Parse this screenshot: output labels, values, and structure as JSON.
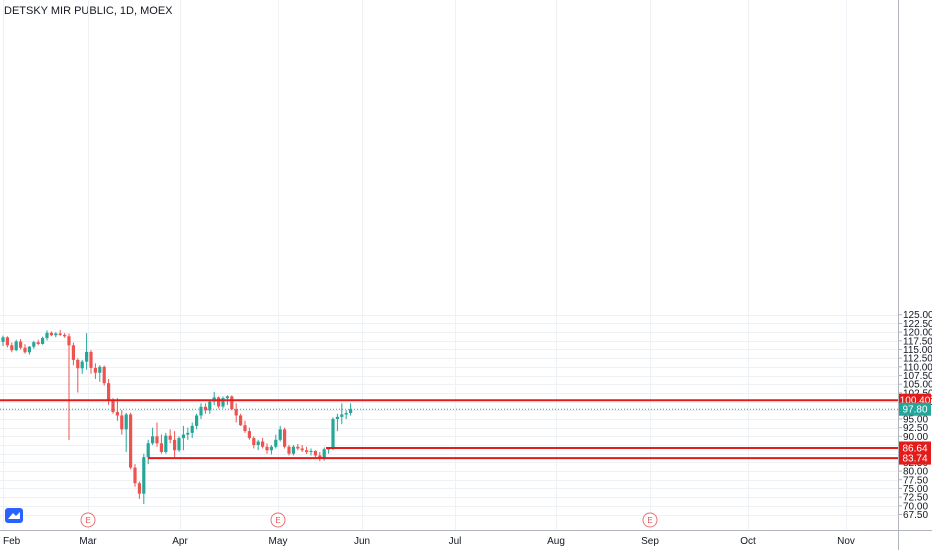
{
  "title": "DETSKY MIR PUBLIC, 1D, MOEX",
  "colors": {
    "up": "#26a69a",
    "down": "#ef5350",
    "level": "#e31b1b",
    "last": "#26a69a",
    "earnings": "#e57373"
  },
  "chart_data": {
    "type": "candlestick",
    "title": "DETSKY MIR PUBLIC, 1D, MOEX",
    "ylim": [
      66,
      126
    ],
    "y_ticks": [
      "67.50",
      "70.00",
      "72.50",
      "75.00",
      "77.50",
      "80.00",
      "82.50",
      "85.00",
      "87.50",
      "90.00",
      "92.50",
      "95.00",
      "97.50",
      "100.00",
      "102.50",
      "105.00",
      "107.50",
      "110.00",
      "112.50",
      "115.00",
      "117.50",
      "120.00",
      "122.50",
      "125.00"
    ],
    "x_ticks": [
      "Feb",
      "Mar",
      "Apr",
      "May",
      "Jun",
      "Jul",
      "Aug",
      "Sep",
      "Oct",
      "Nov"
    ],
    "levels": [
      {
        "label": "100.40",
        "value": 100.4
      },
      {
        "label": "86.64",
        "value": 86.64
      },
      {
        "label": "83.74",
        "value": 83.74
      }
    ],
    "last_price": {
      "label": "97.80",
      "value": 97.8
    },
    "earnings": [
      {
        "label": "E",
        "month": "Mar"
      },
      {
        "label": "E",
        "month": "May"
      },
      {
        "label": "E",
        "month": "Sep"
      }
    ],
    "candles": [
      [
        117.2,
        119.0,
        116.0,
        118.5
      ],
      [
        118.5,
        118.8,
        115.6,
        116.2
      ],
      [
        116.2,
        117.0,
        114.2,
        114.8
      ],
      [
        114.8,
        117.8,
        114.5,
        117.3
      ],
      [
        117.3,
        118.0,
        115.0,
        115.5
      ],
      [
        115.5,
        116.5,
        113.8,
        114.2
      ],
      [
        114.2,
        116.0,
        113.5,
        115.8
      ],
      [
        115.8,
        117.5,
        115.2,
        117.1
      ],
      [
        117.1,
        117.8,
        116.2,
        116.6
      ],
      [
        116.6,
        118.7,
        116.4,
        118.3
      ],
      [
        118.3,
        120.5,
        117.6,
        119.8
      ],
      [
        119.8,
        120.2,
        118.8,
        119.1
      ],
      [
        119.1,
        120.0,
        118.5,
        119.6
      ],
      [
        119.6,
        120.6,
        118.9,
        119.2
      ],
      [
        119.2,
        119.7,
        118.4,
        118.8
      ],
      [
        118.8,
        119.6,
        88.9,
        116.2
      ],
      [
        116.2,
        117.0,
        110.5,
        112.0
      ],
      [
        112.0,
        112.5,
        102.6,
        109.6
      ],
      [
        109.6,
        112.0,
        108.0,
        111.5
      ],
      [
        111.5,
        119.7,
        109.2,
        114.3
      ],
      [
        114.3,
        114.8,
        108.0,
        109.7
      ],
      [
        109.7,
        111.0,
        106.5,
        108.3
      ],
      [
        108.3,
        110.5,
        105.7,
        110.0
      ],
      [
        110.0,
        110.4,
        104.6,
        105.3
      ],
      [
        105.3,
        106.5,
        99.0,
        100.3
      ],
      [
        100.3,
        101.0,
        96.5,
        97.0
      ],
      [
        97.0,
        101.0,
        94.5,
        96.0
      ],
      [
        96.0,
        97.5,
        90.5,
        92.0
      ],
      [
        92.0,
        96.8,
        85.5,
        96.3
      ],
      [
        96.3,
        96.8,
        80.5,
        81.0
      ],
      [
        81.0,
        82.0,
        75.5,
        76.5
      ],
      [
        76.5,
        77.0,
        72.0,
        73.5
      ],
      [
        73.5,
        85.0,
        70.5,
        84.0
      ],
      [
        84.0,
        89.0,
        82.0,
        88.0
      ],
      [
        88.0,
        92.5,
        87.5,
        90.0
      ],
      [
        90.0,
        94.0,
        87.0,
        88.0
      ],
      [
        88.0,
        90.5,
        85.0,
        85.5
      ],
      [
        85.5,
        91.0,
        85.0,
        90.2
      ],
      [
        90.2,
        92.0,
        88.0,
        89.0
      ],
      [
        89.0,
        91.5,
        84.0,
        86.0
      ],
      [
        86.0,
        90.0,
        85.5,
        89.5
      ],
      [
        89.5,
        93.0,
        86.0,
        90.5
      ],
      [
        90.5,
        92.5,
        89.0,
        91.0
      ],
      [
        91.0,
        94.0,
        89.5,
        93.0
      ],
      [
        93.0,
        96.5,
        92.0,
        96.0
      ],
      [
        96.0,
        99.5,
        95.0,
        98.5
      ],
      [
        98.5,
        99.5,
        96.5,
        97.5
      ],
      [
        97.5,
        100.5,
        96.5,
        100.0
      ],
      [
        100.0,
        102.8,
        99.0,
        101.2
      ],
      [
        101.2,
        101.5,
        98.0,
        98.6
      ],
      [
        98.6,
        101.5,
        98.0,
        101.0
      ],
      [
        101.0,
        101.8,
        99.0,
        101.5
      ],
      [
        101.5,
        101.8,
        97.5,
        97.8
      ],
      [
        97.8,
        99.5,
        94.0,
        96.0
      ],
      [
        96.0,
        96.5,
        93.0,
        93.2
      ],
      [
        93.2,
        94.5,
        91.0,
        91.5
      ],
      [
        91.5,
        92.5,
        89.0,
        89.5
      ],
      [
        89.5,
        90.0,
        86.5,
        87.5
      ],
      [
        87.5,
        89.0,
        86.0,
        88.5
      ],
      [
        88.5,
        89.5,
        86.5,
        87.0
      ],
      [
        87.0,
        88.0,
        85.0,
        86.0
      ],
      [
        86.0,
        87.5,
        84.8,
        87.0
      ],
      [
        87.0,
        90.5,
        86.5,
        89.0
      ],
      [
        89.0,
        93.0,
        88.5,
        92.0
      ],
      [
        92.0,
        92.5,
        86.5,
        87.0
      ],
      [
        87.0,
        87.5,
        84.5,
        85.0
      ],
      [
        85.0,
        87.5,
        84.5,
        87.0
      ],
      [
        87.0,
        87.8,
        86.0,
        86.5
      ],
      [
        86.5,
        87.5,
        85.5,
        86.0
      ],
      [
        86.0,
        87.0,
        84.9,
        85.5
      ],
      [
        85.5,
        86.5,
        84.5,
        85.8
      ],
      [
        85.8,
        86.0,
        84.0,
        84.5
      ],
      [
        84.5,
        85.5,
        82.8,
        83.7
      ],
      [
        83.7,
        86.8,
        83.0,
        86.3
      ],
      [
        86.3,
        86.7,
        85.0,
        86.5
      ],
      [
        86.5,
        95.5,
        86.0,
        95.0
      ],
      [
        95.0,
        96.5,
        91.5,
        95.6
      ],
      [
        95.6,
        99.5,
        93.5,
        96.3
      ],
      [
        96.3,
        97.5,
        95.0,
        96.7
      ],
      [
        96.7,
        99.5,
        96.0,
        97.8
      ]
    ]
  }
}
